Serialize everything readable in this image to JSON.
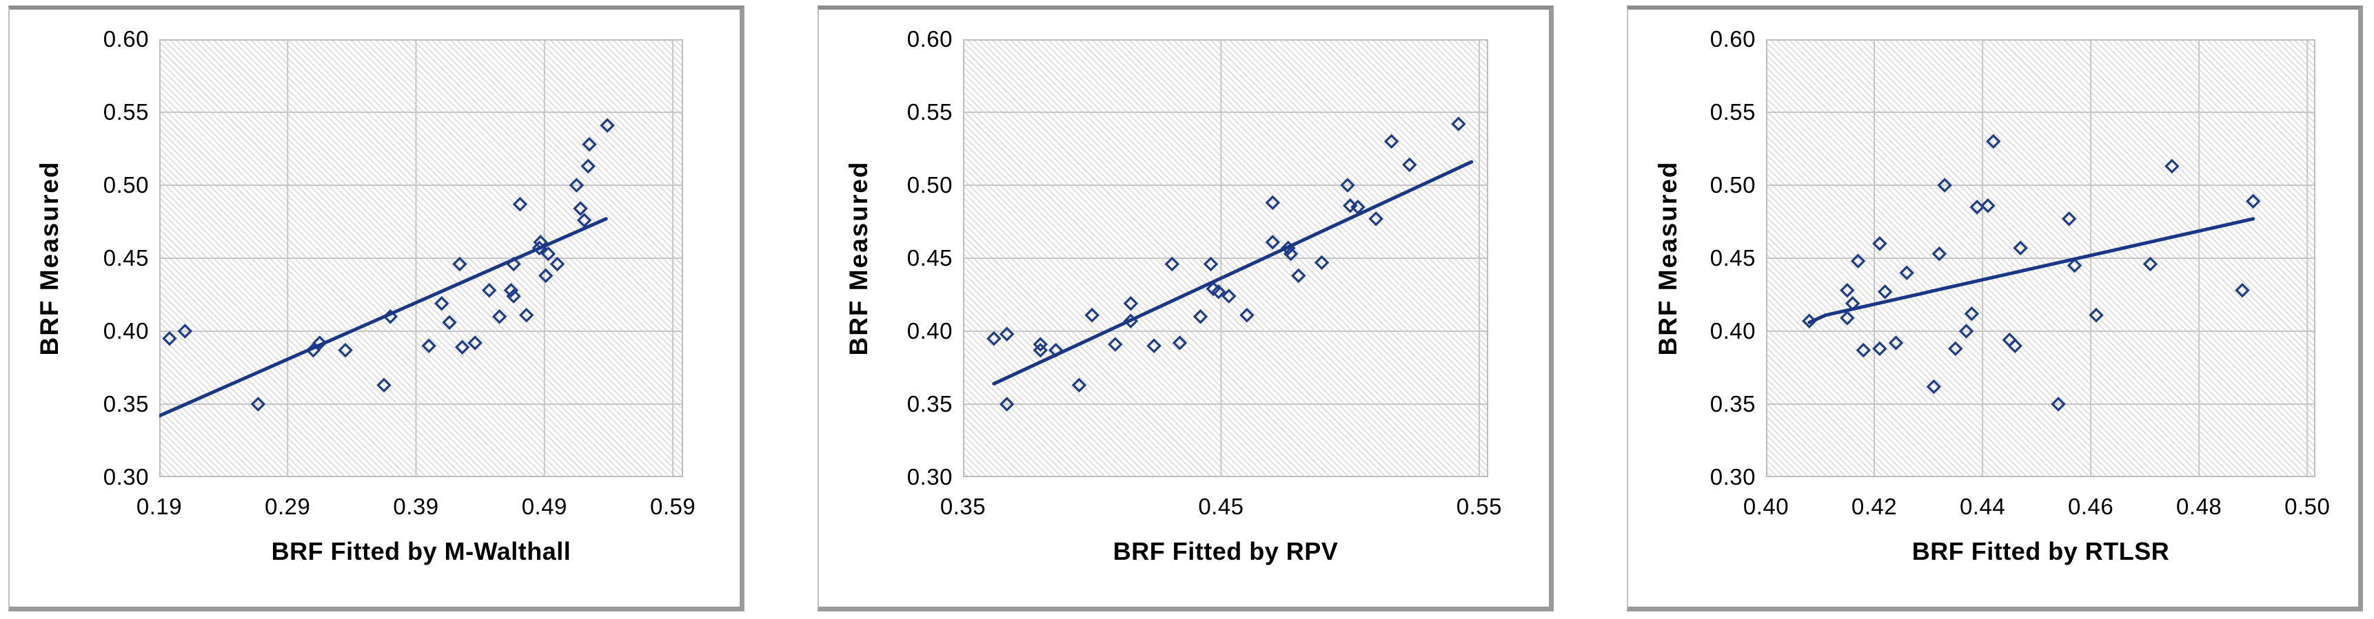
{
  "styles": {
    "background": "#FFFFFF",
    "marker_color": "#1E3C8F",
    "trend_color": "#1A3787",
    "grid_color": "#C6C6C6",
    "plot_border_color": "#BDBDBD",
    "hatch_color": "#DCDCDC",
    "frame_color": "#8D8D8D",
    "text_color": "#000000"
  },
  "chart_data": [
    {
      "type": "scatter",
      "title": "",
      "xlabel": "BRF Fitted by M-Walthall",
      "ylabel": "BRF Measured",
      "x_ticks": [
        0.19,
        0.29,
        0.39,
        0.49,
        0.59
      ],
      "x_tick_labels": [
        "0.19",
        "0.29",
        "0.39",
        "0.49",
        "0.59"
      ],
      "y_ticks": [
        0.3,
        0.35,
        0.4,
        0.45,
        0.5,
        0.55,
        0.6
      ],
      "y_tick_labels": [
        "0.30",
        "0.35",
        "0.40",
        "0.45",
        "0.50",
        "0.55",
        "0.60"
      ],
      "xlim": [
        0.19,
        0.59
      ],
      "ylim": [
        0.3,
        0.6
      ],
      "grid": true,
      "legend": "none",
      "marker": "open-diamond",
      "points": [
        [
          0.198,
          0.395
        ],
        [
          0.21,
          0.4
        ],
        [
          0.267,
          0.35
        ],
        [
          0.31,
          0.387
        ],
        [
          0.315,
          0.392
        ],
        [
          0.335,
          0.387
        ],
        [
          0.365,
          0.363
        ],
        [
          0.37,
          0.41
        ],
        [
          0.4,
          0.39
        ],
        [
          0.41,
          0.419
        ],
        [
          0.416,
          0.406
        ],
        [
          0.424,
          0.446
        ],
        [
          0.426,
          0.389
        ],
        [
          0.436,
          0.392
        ],
        [
          0.447,
          0.428
        ],
        [
          0.455,
          0.41
        ],
        [
          0.464,
          0.428
        ],
        [
          0.466,
          0.424
        ],
        [
          0.466,
          0.446
        ],
        [
          0.471,
          0.487
        ],
        [
          0.476,
          0.411
        ],
        [
          0.486,
          0.457
        ],
        [
          0.487,
          0.461
        ],
        [
          0.491,
          0.438
        ],
        [
          0.493,
          0.453
        ],
        [
          0.5,
          0.446
        ],
        [
          0.515,
          0.5
        ],
        [
          0.518,
          0.484
        ],
        [
          0.521,
          0.476
        ],
        [
          0.524,
          0.513
        ],
        [
          0.525,
          0.528
        ],
        [
          0.539,
          0.541
        ]
      ],
      "trend_line": [
        [
          0.19,
          0.342
        ],
        [
          0.538,
          0.477
        ]
      ]
    },
    {
      "type": "scatter",
      "title": "",
      "xlabel": "BRF Fitted by RPV",
      "ylabel": "BRF Measured",
      "x_ticks": [
        0.35,
        0.45,
        0.55
      ],
      "x_tick_labels": [
        "0.35",
        "0.45",
        "0.55"
      ],
      "y_ticks": [
        0.3,
        0.35,
        0.4,
        0.45,
        0.5,
        0.55,
        0.6
      ],
      "y_tick_labels": [
        "0.30",
        "0.35",
        "0.40",
        "0.45",
        "0.50",
        "0.55",
        "0.60"
      ],
      "xlim": [
        0.35,
        0.55
      ],
      "ylim": [
        0.3,
        0.6
      ],
      "grid": true,
      "legend": "none",
      "marker": "open-diamond",
      "points": [
        [
          0.362,
          0.395
        ],
        [
          0.367,
          0.398
        ],
        [
          0.367,
          0.35
        ],
        [
          0.38,
          0.391
        ],
        [
          0.38,
          0.387
        ],
        [
          0.386,
          0.387
        ],
        [
          0.395,
          0.363
        ],
        [
          0.4,
          0.411
        ],
        [
          0.409,
          0.391
        ],
        [
          0.415,
          0.419
        ],
        [
          0.415,
          0.407
        ],
        [
          0.424,
          0.39
        ],
        [
          0.431,
          0.446
        ],
        [
          0.434,
          0.392
        ],
        [
          0.442,
          0.41
        ],
        [
          0.446,
          0.446
        ],
        [
          0.447,
          0.429
        ],
        [
          0.449,
          0.427
        ],
        [
          0.453,
          0.424
        ],
        [
          0.46,
          0.411
        ],
        [
          0.47,
          0.488
        ],
        [
          0.47,
          0.461
        ],
        [
          0.476,
          0.457
        ],
        [
          0.477,
          0.453
        ],
        [
          0.48,
          0.438
        ],
        [
          0.489,
          0.447
        ],
        [
          0.499,
          0.5
        ],
        [
          0.5,
          0.486
        ],
        [
          0.503,
          0.485
        ],
        [
          0.51,
          0.477
        ],
        [
          0.516,
          0.53
        ],
        [
          0.523,
          0.514
        ],
        [
          0.542,
          0.542
        ]
      ],
      "trend_line": [
        [
          0.362,
          0.364
        ],
        [
          0.547,
          0.516
        ]
      ]
    },
    {
      "type": "scatter",
      "title": "",
      "xlabel": "BRF Fitted by RTLSR",
      "ylabel": "BRF Measured",
      "x_ticks": [
        0.4,
        0.42,
        0.44,
        0.46,
        0.48,
        0.5
      ],
      "x_tick_labels": [
        "0.40",
        "0.42",
        "0.44",
        "0.46",
        "0.48",
        "0.50"
      ],
      "y_ticks": [
        0.3,
        0.35,
        0.4,
        0.45,
        0.5,
        0.55,
        0.6
      ],
      "y_tick_labels": [
        "0.30",
        "0.35",
        "0.40",
        "0.45",
        "0.50",
        "0.55",
        "0.60"
      ],
      "xlim": [
        0.4,
        0.5
      ],
      "ylim": [
        0.3,
        0.6
      ],
      "grid": true,
      "legend": "none",
      "marker": "open-diamond",
      "points": [
        [
          0.408,
          0.407
        ],
        [
          0.415,
          0.428
        ],
        [
          0.415,
          0.409
        ],
        [
          0.416,
          0.419
        ],
        [
          0.417,
          0.448
        ],
        [
          0.418,
          0.387
        ],
        [
          0.421,
          0.46
        ],
        [
          0.421,
          0.388
        ],
        [
          0.422,
          0.427
        ],
        [
          0.424,
          0.392
        ],
        [
          0.426,
          0.44
        ],
        [
          0.431,
          0.362
        ],
        [
          0.432,
          0.453
        ],
        [
          0.433,
          0.5
        ],
        [
          0.435,
          0.388
        ],
        [
          0.437,
          0.4
        ],
        [
          0.438,
          0.412
        ],
        [
          0.439,
          0.485
        ],
        [
          0.441,
          0.486
        ],
        [
          0.442,
          0.53
        ],
        [
          0.445,
          0.394
        ],
        [
          0.446,
          0.39
        ],
        [
          0.447,
          0.457
        ],
        [
          0.454,
          0.35
        ],
        [
          0.456,
          0.477
        ],
        [
          0.457,
          0.445
        ],
        [
          0.461,
          0.411
        ],
        [
          0.471,
          0.446
        ],
        [
          0.475,
          0.513
        ],
        [
          0.488,
          0.428
        ],
        [
          0.49,
          0.489
        ]
      ],
      "trend_line": [
        [
          0.408,
          0.406
        ],
        [
          0.411,
          0.411
        ],
        [
          0.49,
          0.477
        ]
      ]
    }
  ]
}
